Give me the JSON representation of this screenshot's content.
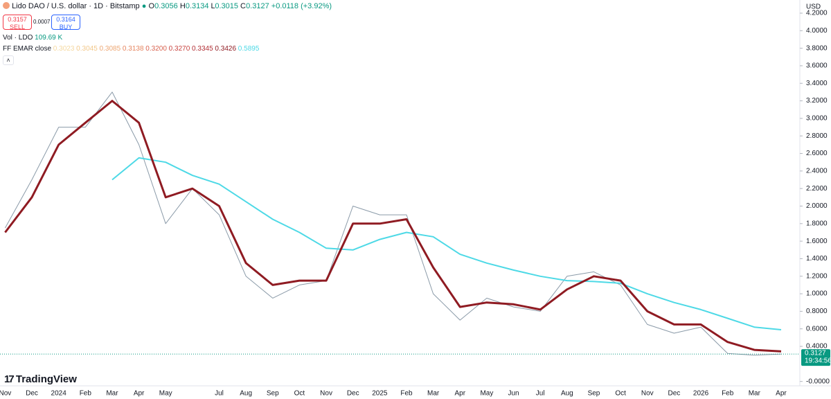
{
  "header": {
    "symbol": "Lido DAO / U.S. dollar · 1D · Bitstamp",
    "ohlc": [
      {
        "label": "O",
        "value": "0.3056"
      },
      {
        "label": "H",
        "value": "0.3134"
      },
      {
        "label": "L",
        "value": "0.3015"
      },
      {
        "label": "C",
        "value": "0.3127"
      }
    ],
    "change": "+0.0118 (+3.92%)"
  },
  "trade": {
    "sell_price": "0.3157",
    "sell_label": "SELL",
    "spread": "0.0007",
    "buy_price": "0.3164",
    "buy_label": "BUY"
  },
  "volume": {
    "label": "Vol · LDO",
    "value": "109.69 K"
  },
  "indicator": {
    "label": "FF EMAR close",
    "values": [
      {
        "text": "0.3023",
        "color": "#f5d9a0"
      },
      {
        "text": "0.3045",
        "color": "#f2c88a"
      },
      {
        "text": "0.3085",
        "color": "#eda672"
      },
      {
        "text": "0.3138",
        "color": "#e6855f"
      },
      {
        "text": "0.3200",
        "color": "#d9624f"
      },
      {
        "text": "0.3270",
        "color": "#c84440"
      },
      {
        "text": "0.3345",
        "color": "#b12d33"
      },
      {
        "text": "0.3426",
        "color": "#8f1b22"
      },
      {
        "text": "0.5895",
        "color": "#4dd9e6"
      }
    ]
  },
  "currency": "USD",
  "brand": "TradingView",
  "last_price": {
    "value": 0.3127,
    "label": "0.3127",
    "countdown": "19:34:56"
  },
  "chart_data": {
    "type": "line",
    "categories": [
      "Nov",
      "Dec",
      "2024",
      "Feb",
      "Mar",
      "Apr",
      "May",
      null,
      "Jul",
      "Aug",
      "Sep",
      "Oct",
      "Nov",
      "Dec",
      "2025",
      "Feb",
      "Mar",
      "Apr",
      "May",
      "Jun",
      "Jul",
      "Aug",
      "Sep",
      "Oct",
      "Nov",
      "Dec",
      "2026",
      "Feb",
      "Mar",
      "Apr"
    ],
    "series": [
      {
        "color": "#8a9aa8",
        "values": [
          1.75,
          2.3,
          2.9,
          2.9,
          3.3,
          2.7,
          1.8,
          2.2,
          1.9,
          1.2,
          0.95,
          1.1,
          1.15,
          2.0,
          1.9,
          1.9,
          1.0,
          0.7,
          0.95,
          0.85,
          0.8,
          1.2,
          1.25,
          1.1,
          0.65,
          0.55,
          0.62,
          0.32,
          0.3,
          0.3127
        ]
      },
      {
        "color": "#4dd9e6",
        "values": [
          null,
          null,
          null,
          null,
          2.3,
          2.55,
          2.5,
          2.35,
          2.25,
          2.05,
          1.85,
          1.7,
          1.52,
          1.5,
          1.62,
          1.7,
          1.65,
          1.45,
          1.35,
          1.27,
          1.2,
          1.15,
          1.14,
          1.12,
          1.0,
          0.9,
          0.82,
          0.72,
          0.62,
          0.5895
        ]
      },
      {
        "color": "#8f1b22",
        "values": [
          1.7,
          2.1,
          2.7,
          2.95,
          3.2,
          2.95,
          2.1,
          2.2,
          2.0,
          1.35,
          1.1,
          1.15,
          1.15,
          1.8,
          1.8,
          1.85,
          1.3,
          0.85,
          0.9,
          0.88,
          0.82,
          1.05,
          1.2,
          1.15,
          0.8,
          0.65,
          0.65,
          0.45,
          0.36,
          0.3426
        ]
      }
    ],
    "ylim": [
      -0.05,
      4.35
    ],
    "yticks": [
      {
        "value": 4.2,
        "label": "4.2000"
      },
      {
        "value": 4.0,
        "label": "4.0000"
      },
      {
        "value": 3.8,
        "label": "3.8000"
      },
      {
        "value": 3.6,
        "label": "3.6000"
      },
      {
        "value": 3.4,
        "label": "3.4000"
      },
      {
        "value": 3.2,
        "label": "3.2000"
      },
      {
        "value": 3.0,
        "label": "3.0000"
      },
      {
        "value": 2.8,
        "label": "2.8000"
      },
      {
        "value": 2.6,
        "label": "2.6000"
      },
      {
        "value": 2.4,
        "label": "2.4000"
      },
      {
        "value": 2.2,
        "label": "2.2000"
      },
      {
        "value": 2.0,
        "label": "2.0000"
      },
      {
        "value": 1.8,
        "label": "1.8000"
      },
      {
        "value": 1.6,
        "label": "1.6000"
      },
      {
        "value": 1.4,
        "label": "1.4000"
      },
      {
        "value": 1.2,
        "label": "1.2000"
      },
      {
        "value": 1.0,
        "label": "1.0000"
      },
      {
        "value": 0.8,
        "label": "0.8000"
      },
      {
        "value": 0.6,
        "label": "0.6000"
      },
      {
        "value": 0.4,
        "label": "0.4000"
      },
      {
        "value": 0,
        "label": "-0.0000"
      }
    ],
    "grid": false
  }
}
